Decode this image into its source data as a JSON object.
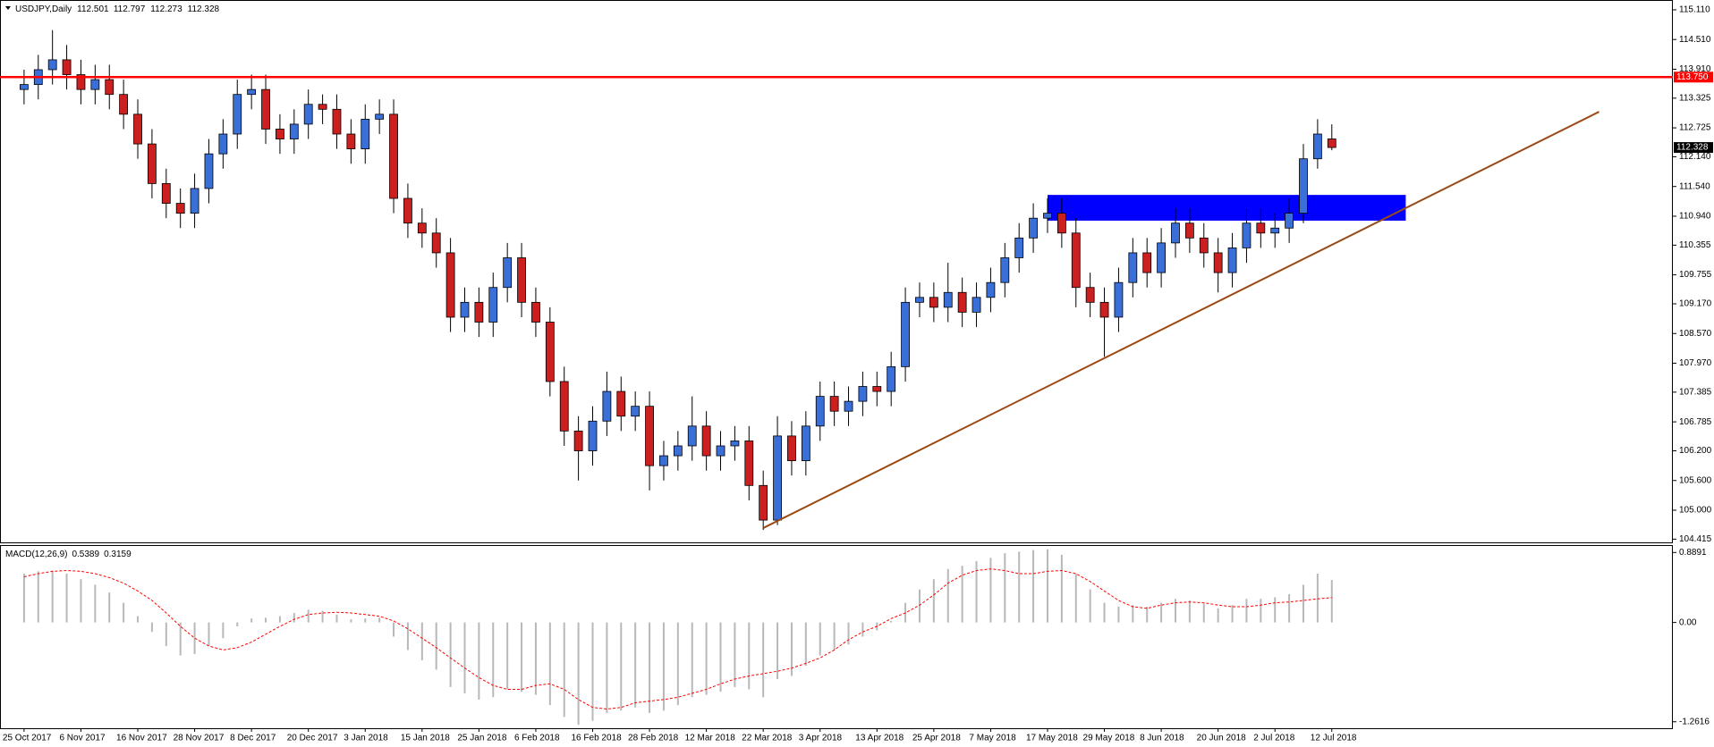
{
  "chart_data": [
    {
      "type": "candlestick",
      "title": "USDJPY,Daily",
      "categories": [
        "25 Oct 2017",
        null,
        null,
        null,
        "6 Nov 2017",
        null,
        null,
        null,
        "16 Nov 2017",
        null,
        null,
        null,
        "28 Nov 2017",
        null,
        null,
        null,
        "8 Dec 2017",
        null,
        null,
        null,
        "20 Dec 2017",
        null,
        null,
        null,
        "3 Jan 2018",
        null,
        null,
        null,
        "15 Jan 2018",
        null,
        null,
        null,
        "25 Jan 2018",
        null,
        null,
        null,
        "6 Feb 2018",
        null,
        null,
        null,
        "16 Feb 2018",
        null,
        null,
        null,
        "28 Feb 2018",
        null,
        null,
        null,
        "12 Mar 2018",
        null,
        null,
        null,
        "22 Mar 2018",
        null,
        null,
        null,
        "3 Apr 2018",
        null,
        null,
        null,
        "13 Apr 2018",
        null,
        null,
        null,
        "25 Apr 2018",
        null,
        null,
        null,
        "7 May 2018",
        null,
        null,
        null,
        "17 May 2018",
        null,
        null,
        null,
        "29 May 2018",
        null,
        null,
        null,
        "8 Jun 2018",
        null,
        null,
        null,
        "20 Jun 2018",
        null,
        null,
        null,
        "2 Jul 2018",
        null,
        null,
        null,
        "12 Jul 2018"
      ],
      "open": [
        113.5,
        113.6,
        113.9,
        114.1,
        113.8,
        113.5,
        113.7,
        113.4,
        113.0,
        112.4,
        111.6,
        111.2,
        111.0,
        111.5,
        112.2,
        112.6,
        113.4,
        113.5,
        112.7,
        112.5,
        112.8,
        113.2,
        113.1,
        112.6,
        112.3,
        112.9,
        113.0,
        111.3,
        110.8,
        110.6,
        110.2,
        108.9,
        109.2,
        108.8,
        109.5,
        110.1,
        109.2,
        108.8,
        107.6,
        106.6,
        106.2,
        106.8,
        107.4,
        106.9,
        107.1,
        105.9,
        106.1,
        106.3,
        106.7,
        106.1,
        106.3,
        106.4,
        105.5,
        104.8,
        106.5,
        106.0,
        106.7,
        107.3,
        107.0,
        107.2,
        107.5,
        107.4,
        107.9,
        109.2,
        109.3,
        109.1,
        109.4,
        109.0,
        109.3,
        109.6,
        110.1,
        110.5,
        110.9,
        111.0,
        110.6,
        109.5,
        109.2,
        108.9,
        109.6,
        110.2,
        109.8,
        110.4,
        110.8,
        110.5,
        110.2,
        109.8,
        110.3,
        110.8,
        110.6,
        110.7,
        111.0,
        112.1,
        112.501
      ],
      "high": [
        113.9,
        114.2,
        114.7,
        114.4,
        114.1,
        114.0,
        114.0,
        113.7,
        113.3,
        112.7,
        111.9,
        111.5,
        111.8,
        112.5,
        112.9,
        113.7,
        113.8,
        113.8,
        113.0,
        113.1,
        113.5,
        113.4,
        113.4,
        112.9,
        113.2,
        113.3,
        113.3,
        111.6,
        111.1,
        110.9,
        110.5,
        109.5,
        109.5,
        109.8,
        110.4,
        110.4,
        109.5,
        109.1,
        107.9,
        106.9,
        107.1,
        107.8,
        107.7,
        107.4,
        107.4,
        106.4,
        106.6,
        107.3,
        107.0,
        106.6,
        106.7,
        106.7,
        105.8,
        106.9,
        106.8,
        107.0,
        107.6,
        107.6,
        107.5,
        107.8,
        107.8,
        108.2,
        109.5,
        109.6,
        109.6,
        110.0,
        109.7,
        109.6,
        109.9,
        110.4,
        110.8,
        111.2,
        111.3,
        111.3,
        110.9,
        109.8,
        109.5,
        109.9,
        110.5,
        110.5,
        110.7,
        111.1,
        111.1,
        110.8,
        110.5,
        110.6,
        111.1,
        111.1,
        111.0,
        111.3,
        112.4,
        112.9,
        112.797
      ],
      "low": [
        113.2,
        113.3,
        113.6,
        113.5,
        113.2,
        113.2,
        113.1,
        112.7,
        112.1,
        111.3,
        110.9,
        110.7,
        110.7,
        111.2,
        111.9,
        112.3,
        113.1,
        112.4,
        112.2,
        112.2,
        112.5,
        112.8,
        112.3,
        112.0,
        112.0,
        112.6,
        111.0,
        110.5,
        110.3,
        109.9,
        108.6,
        108.6,
        108.5,
        108.5,
        109.2,
        108.9,
        108.5,
        107.3,
        106.3,
        105.6,
        105.9,
        106.5,
        106.6,
        106.6,
        105.4,
        105.6,
        105.8,
        106.0,
        105.8,
        105.8,
        106.0,
        105.2,
        104.6,
        104.7,
        105.7,
        105.7,
        106.4,
        106.7,
        106.7,
        106.9,
        107.1,
        107.1,
        107.6,
        108.9,
        108.8,
        108.8,
        108.7,
        108.7,
        109.0,
        109.3,
        109.8,
        110.2,
        110.6,
        110.3,
        109.1,
        108.9,
        108.1,
        108.6,
        109.3,
        109.5,
        109.5,
        110.1,
        110.2,
        109.9,
        109.4,
        109.5,
        110.0,
        110.3,
        110.3,
        110.4,
        110.8,
        111.9,
        112.273
      ],
      "close": [
        113.6,
        113.9,
        114.1,
        113.8,
        113.5,
        113.7,
        113.4,
        113.0,
        112.4,
        111.6,
        111.2,
        111.0,
        111.5,
        112.2,
        112.6,
        113.4,
        113.5,
        112.7,
        112.5,
        112.8,
        113.2,
        113.1,
        112.6,
        112.3,
        112.9,
        113.0,
        111.3,
        110.8,
        110.6,
        110.2,
        108.9,
        109.2,
        108.8,
        109.5,
        110.1,
        109.2,
        108.8,
        107.6,
        106.6,
        106.2,
        106.8,
        107.4,
        106.9,
        107.1,
        105.9,
        106.1,
        106.3,
        106.7,
        106.1,
        106.3,
        106.4,
        105.5,
        104.8,
        106.5,
        106.0,
        106.7,
        107.3,
        107.0,
        107.2,
        107.5,
        107.4,
        107.9,
        109.2,
        109.3,
        109.1,
        109.4,
        109.0,
        109.3,
        109.6,
        110.1,
        110.5,
        110.9,
        111.0,
        110.6,
        109.5,
        109.2,
        108.9,
        109.6,
        110.2,
        109.8,
        110.4,
        110.8,
        110.5,
        110.2,
        109.8,
        110.3,
        110.8,
        110.6,
        110.7,
        111.0,
        112.1,
        112.6,
        112.328
      ],
      "up_color": "#3a6fd8",
      "down_color": "#cc2020",
      "ylim": [
        104.35,
        115.29
      ],
      "yticks": [
        {
          "value": 115.11,
          "label": "115.110"
        },
        {
          "value": 114.51,
          "label": "114.510"
        },
        {
          "value": 113.91,
          "label": "113.910"
        },
        {
          "value": 113.325,
          "label": "113.325"
        },
        {
          "value": 112.725,
          "label": "112.725"
        },
        {
          "value": 112.14,
          "label": "112.140"
        },
        {
          "value": 111.54,
          "label": "111.540"
        },
        {
          "value": 110.94,
          "label": "110.940"
        },
        {
          "value": 110.355,
          "label": "110.355"
        },
        {
          "value": 109.755,
          "label": "109.755"
        },
        {
          "value": 109.17,
          "label": "109.170"
        },
        {
          "value": 108.57,
          "label": "108.570"
        },
        {
          "value": 107.97,
          "label": "107.970"
        },
        {
          "value": 107.385,
          "label": "107.385"
        },
        {
          "value": 106.785,
          "label": "106.785"
        },
        {
          "value": 106.2,
          "label": "106.200"
        },
        {
          "value": 105.6,
          "label": "105.600"
        },
        {
          "value": 105.0,
          "label": "105.000"
        },
        {
          "value": 104.415,
          "label": "104.415"
        }
      ],
      "hline": {
        "value": 113.75,
        "label": "113.750",
        "color": "#ff0000"
      },
      "zone": {
        "x": [
          72,
          97.2
        ],
        "y": [
          110.85,
          111.37
        ],
        "color": "#0000ff"
      },
      "trendline": {
        "x": [
          52,
          110.8
        ],
        "y": [
          104.64,
          113.05
        ],
        "color": "#9c4a14"
      }
    },
    {
      "type": "macd",
      "title": "MACD(12,26,9)",
      "series": [
        {
          "kind": "bar",
          "color": "#b8b8b8",
          "values": [
            0.62,
            0.65,
            0.66,
            0.62,
            0.55,
            0.48,
            0.38,
            0.25,
            0.08,
            -0.12,
            -0.3,
            -0.42,
            -0.4,
            -0.3,
            -0.2,
            -0.05,
            0.05,
            0.06,
            0.08,
            0.12,
            0.16,
            0.15,
            0.1,
            0.04,
            0.05,
            0.06,
            -0.18,
            -0.35,
            -0.48,
            -0.6,
            -0.82,
            -0.9,
            -0.98,
            -0.95,
            -0.85,
            -0.88,
            -0.92,
            -1.05,
            -1.2,
            -1.3,
            -1.25,
            -1.15,
            -1.12,
            -1.08,
            -1.15,
            -1.12,
            -1.05,
            -0.95,
            -0.92,
            -0.88,
            -0.82,
            -0.85,
            -0.95,
            -0.72,
            -0.68,
            -0.55,
            -0.42,
            -0.35,
            -0.28,
            -0.18,
            -0.1,
            0.02,
            0.25,
            0.42,
            0.55,
            0.68,
            0.72,
            0.78,
            0.82,
            0.88,
            0.9,
            0.92,
            0.93,
            0.86,
            0.62,
            0.42,
            0.25,
            0.2,
            0.22,
            0.2,
            0.25,
            0.3,
            0.28,
            0.24,
            0.18,
            0.22,
            0.3,
            0.3,
            0.32,
            0.36,
            0.48,
            0.62,
            0.5389
          ]
        },
        {
          "kind": "line",
          "color": "#ff0000",
          "dashed": true,
          "values": [
            0.58,
            0.62,
            0.65,
            0.66,
            0.65,
            0.62,
            0.57,
            0.5,
            0.4,
            0.28,
            0.12,
            -0.05,
            -0.2,
            -0.3,
            -0.35,
            -0.32,
            -0.25,
            -0.15,
            -0.05,
            0.04,
            0.1,
            0.12,
            0.13,
            0.12,
            0.1,
            0.08,
            0.02,
            -0.08,
            -0.2,
            -0.32,
            -0.45,
            -0.58,
            -0.7,
            -0.8,
            -0.85,
            -0.85,
            -0.8,
            -0.78,
            -0.85,
            -0.98,
            -1.08,
            -1.1,
            -1.08,
            -1.02,
            -1.0,
            -0.98,
            -0.95,
            -0.9,
            -0.85,
            -0.78,
            -0.72,
            -0.68,
            -0.65,
            -0.62,
            -0.58,
            -0.52,
            -0.45,
            -0.35,
            -0.22,
            -0.12,
            -0.05,
            0.05,
            0.12,
            0.22,
            0.35,
            0.5,
            0.6,
            0.66,
            0.68,
            0.66,
            0.62,
            0.62,
            0.65,
            0.66,
            0.62,
            0.52,
            0.4,
            0.28,
            0.2,
            0.18,
            0.22,
            0.25,
            0.26,
            0.25,
            0.22,
            0.2,
            0.2,
            0.22,
            0.25,
            0.26,
            0.28,
            0.3,
            0.3159
          ]
        }
      ],
      "ylim": [
        -1.344,
        0.972
      ],
      "yticks": [
        0.8891,
        {
          "value": 0,
          "label": "0.00"
        },
        -1.2616
      ]
    }
  ]
}
